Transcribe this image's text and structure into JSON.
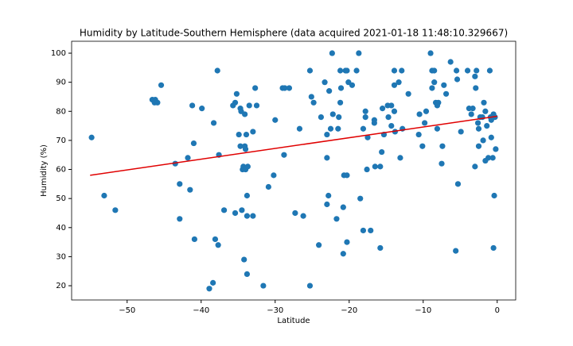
{
  "chart_data": {
    "type": "scatter",
    "title": "Humidity by Latitude-Southern Hemisphere (data acquired 2021-01-18 11:48:10.329667)",
    "xlabel": "Latitude",
    "ylabel": "Humidity (%)",
    "color": "#1f77b4",
    "x": [
      -54.8,
      -53.1,
      -51.6,
      -46.6,
      -46.2,
      -45.9,
      -46.3,
      -45.4,
      -43.5,
      -42.9,
      -42.9,
      -41.8,
      -41.5,
      -41.2,
      -41,
      -40.9,
      -39.9,
      -38.9,
      -38.4,
      -38.3,
      -38.1,
      -37.8,
      -37.6,
      -37.7,
      -36.9,
      -35.7,
      -35.4,
      -35.4,
      -35.2,
      -34.9,
      -34.7,
      -34.7,
      -34.6,
      -34.5,
      -34.4,
      -34.3,
      -34.2,
      -34.1,
      -34.1,
      -34,
      -34,
      -33.9,
      -33.8,
      -33.8,
      -33.8,
      -33.7,
      -33.5,
      -33,
      -33,
      -32.7,
      -32.5,
      -31.6,
      -30.9,
      -30.2,
      -30,
      -29,
      -28.7,
      -28.1,
      -28.8,
      -27.3,
      -26.7,
      -26.2,
      -25.3,
      -25.3,
      -25.1,
      -24.8,
      -24.1,
      -23.8,
      -23.3,
      -23,
      -23,
      -23,
      -22.8,
      -22.7,
      -22.5,
      -22.3,
      -22.2,
      -21.7,
      -21.5,
      -21.4,
      -21.2,
      -21.1,
      -21.2,
      -20.8,
      -20.8,
      -20.7,
      -20.3,
      -20.5,
      -20.3,
      -20.3,
      -20.1,
      -19.6,
      -19,
      -18.7,
      -18.5,
      -18.1,
      -18.1,
      -17.8,
      -17.8,
      -17.6,
      -17.5,
      -17.1,
      -16.6,
      -16.6,
      -16.5,
      -15.8,
      -15.8,
      -15.6,
      -15.5,
      -15.3,
      -14.8,
      -14.7,
      -14.3,
      -14.3,
      -13.9,
      -13.9,
      -13.9,
      -13.8,
      -13.3,
      -13.1,
      -12.9,
      -12.8,
      -12,
      -10.6,
      -10.5,
      -10.1,
      -9.8,
      -9.6,
      -9,
      -8.8,
      -8.5,
      -8.5,
      -8.8,
      -8.3,
      -7.95,
      -8.1,
      -8.1,
      -7.5,
      -7.4,
      -7.2,
      -6.9,
      -6.3,
      -5.6,
      -5.5,
      -5.4,
      -5.3,
      -4.9,
      -4,
      -3.8,
      -3.5,
      -3.3,
      -3,
      -3,
      -2.9,
      -2.8,
      -2.6,
      -2.5,
      -2.5,
      -2.3,
      -2,
      -1.9,
      -1.8,
      -1.6,
      -1.6,
      -1.4,
      -1.2,
      -1,
      -0.9,
      -0.8,
      -0.8,
      -0.6,
      -0.5,
      -0.5,
      -0.4,
      -0.3,
      -0.2
    ],
    "y": [
      71,
      51,
      46,
      84,
      84,
      83,
      83,
      89,
      62,
      55,
      43,
      64,
      53,
      82,
      69,
      36,
      81,
      19,
      21,
      76,
      36,
      94,
      65,
      34,
      46,
      82,
      45,
      83,
      86,
      72,
      81,
      68,
      80,
      46,
      60,
      61,
      29,
      79,
      68,
      67,
      60,
      72,
      51,
      44,
      24,
      61,
      82,
      73,
      44,
      88,
      82,
      20,
      54,
      58,
      77,
      88,
      88,
      88,
      65,
      45,
      74,
      44,
      94,
      20,
      85,
      83,
      34,
      78,
      90,
      72,
      48,
      64,
      51,
      87,
      74,
      100,
      79,
      43,
      74,
      78,
      83,
      88,
      94,
      31,
      47,
      58,
      58,
      94,
      94,
      35,
      90,
      89,
      94,
      100,
      50,
      39,
      74,
      80,
      78,
      60,
      71,
      39,
      77,
      76,
      61,
      33,
      61,
      66,
      81,
      72,
      82,
      78,
      82,
      75,
      94,
      89,
      80,
      73,
      90,
      64,
      94,
      74,
      86,
      72,
      79,
      68,
      76,
      80,
      100,
      94,
      94,
      90,
      88,
      83,
      83,
      82,
      74,
      62,
      68,
      89,
      86,
      97,
      32,
      94,
      91,
      55,
      73,
      94,
      81,
      79,
      81,
      61,
      92,
      88,
      94,
      76,
      68,
      74,
      78,
      78,
      70,
      83,
      80,
      63,
      75,
      64,
      94,
      78,
      77,
      71,
      64,
      33,
      79,
      51,
      78,
      67
    ],
    "regression": {
      "x": [
        -55,
        0
      ],
      "y": [
        58,
        78.3
      ],
      "color": "#e00000"
    },
    "xlim": [
      -57.5,
      2.5
    ],
    "ylim": [
      15.1,
      104.1
    ],
    "xticks": [
      {
        "value": -50,
        "label": "−50"
      },
      {
        "value": -40,
        "label": "−40"
      },
      {
        "value": -30,
        "label": "−30"
      },
      {
        "value": -20,
        "label": "−20"
      },
      {
        "value": -10,
        "label": "−10"
      },
      0
    ],
    "yticks": [
      20,
      30,
      40,
      50,
      60,
      70,
      80,
      90,
      100
    ]
  }
}
